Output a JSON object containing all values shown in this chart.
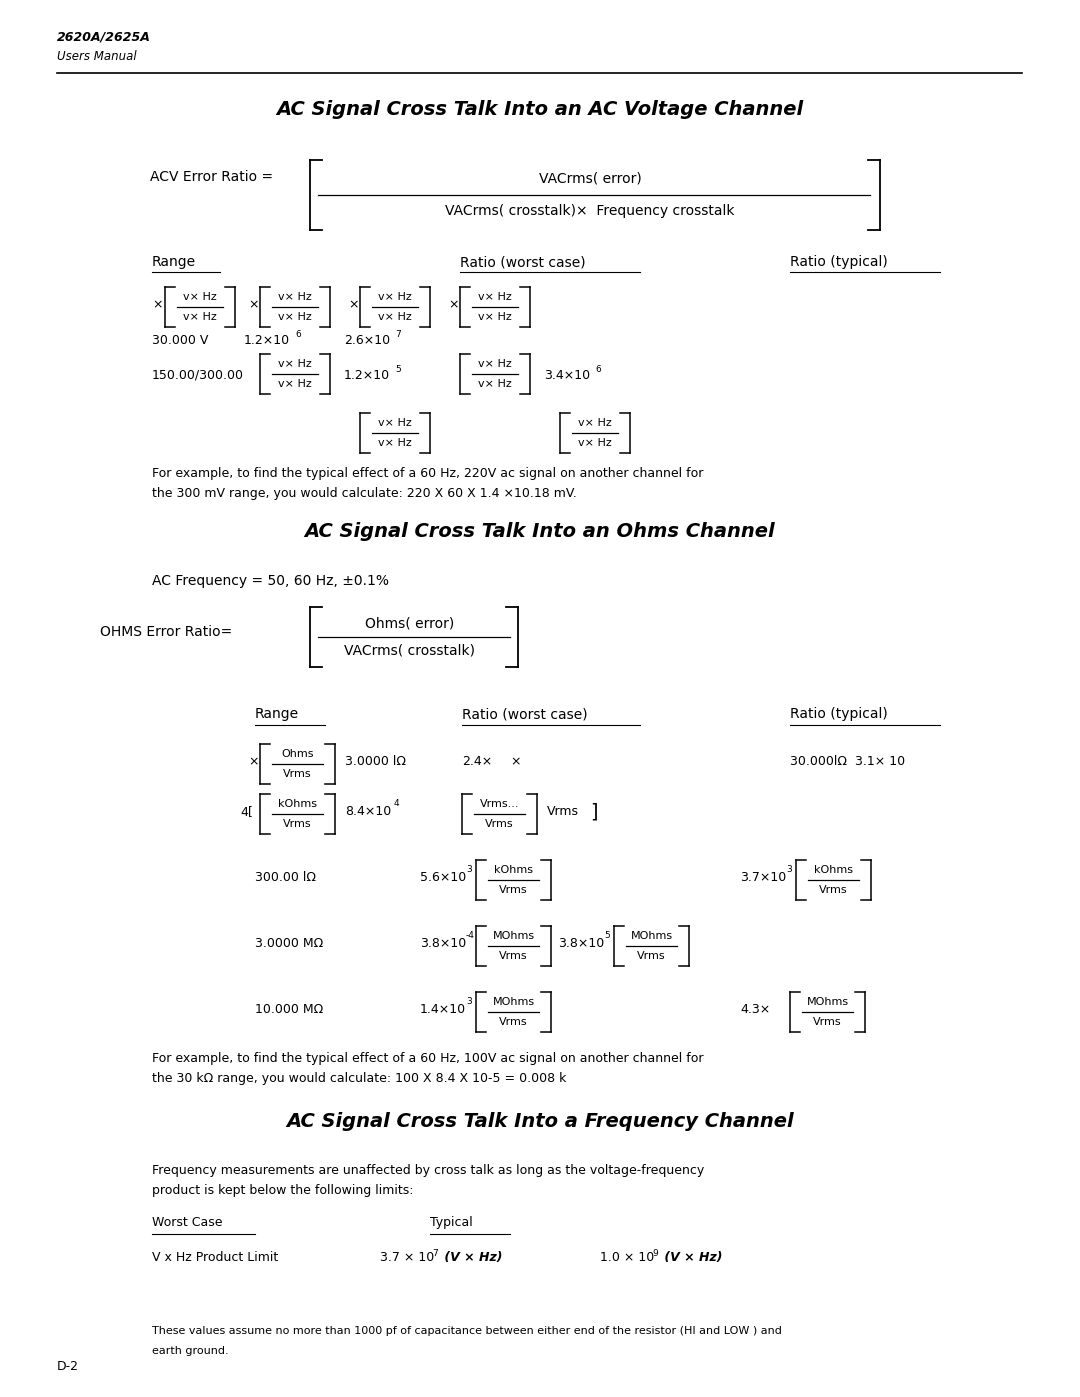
{
  "header_title": "2620A/2625A",
  "header_subtitle": "Users Manual",
  "section1_title": "AC Signal Cross Talk Into an AC Voltage Channel",
  "section2_title": "AC Signal Cross Talk Into an Ohms Channel",
  "section3_title": "AC Signal Cross Talk Into a Frequency Channel",
  "bg_color": "#ffffff",
  "text_color": "#000000"
}
